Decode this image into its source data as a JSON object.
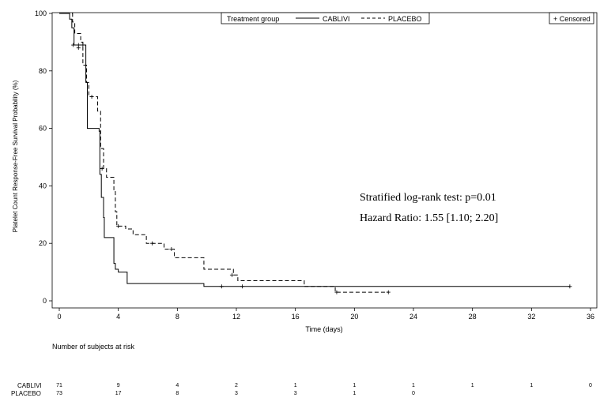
{
  "chart_data": {
    "type": "line",
    "subtype": "kaplan-meier",
    "title": "",
    "xlabel": "Time (days)",
    "ylabel": "Platelet Count Response-Free Survival Probability (%)",
    "xlim": [
      0,
      36
    ],
    "ylim": [
      0,
      100
    ],
    "xticks": [
      0,
      4,
      8,
      12,
      16,
      20,
      24,
      28,
      32,
      36
    ],
    "yticks": [
      0,
      20,
      40,
      60,
      80,
      100
    ],
    "grid": false,
    "legend": {
      "title": "Treatment group",
      "placement": "top-center",
      "entries": [
        "CABLIVI",
        "PLACEBO"
      ],
      "censored_label": "+ Censored"
    },
    "annotations": [
      "Stratified log-rank test: p=0.01",
      "Hazard Ratio: 1.55 [1.10; 2.20]"
    ],
    "series": [
      {
        "name": "CABLIVI",
        "style": "solid",
        "steps": [
          [
            0,
            100
          ],
          [
            0.7,
            98
          ],
          [
            0.85,
            95
          ],
          [
            1.0,
            89
          ],
          [
            1.8,
            76
          ],
          [
            1.9,
            60
          ],
          [
            2.7,
            59
          ],
          [
            2.75,
            44
          ],
          [
            2.85,
            36
          ],
          [
            3.0,
            29
          ],
          [
            3.05,
            22
          ],
          [
            3.7,
            13
          ],
          [
            3.8,
            11
          ],
          [
            4.0,
            10
          ],
          [
            4.6,
            6
          ],
          [
            9.8,
            5
          ],
          [
            16.5,
            5
          ],
          [
            34.6,
            5
          ]
        ],
        "censored": [
          [
            0.95,
            89
          ],
          [
            1.3,
            89
          ],
          [
            1.6,
            89
          ],
          [
            11.0,
            5
          ],
          [
            12.4,
            5
          ],
          [
            34.6,
            5
          ]
        ]
      },
      {
        "name": "PLACEBO",
        "style": "dashed",
        "steps": [
          [
            0,
            100
          ],
          [
            0.9,
            97
          ],
          [
            1.05,
            93
          ],
          [
            1.45,
            90
          ],
          [
            1.6,
            82
          ],
          [
            1.85,
            76
          ],
          [
            2.0,
            71
          ],
          [
            2.6,
            66
          ],
          [
            2.8,
            53
          ],
          [
            3.0,
            46
          ],
          [
            3.2,
            43
          ],
          [
            3.7,
            38
          ],
          [
            3.8,
            31
          ],
          [
            3.9,
            26
          ],
          [
            4.5,
            25
          ],
          [
            5.0,
            23
          ],
          [
            5.9,
            20
          ],
          [
            7.1,
            18
          ],
          [
            7.8,
            15
          ],
          [
            9.8,
            11
          ],
          [
            11.8,
            9
          ],
          [
            12.1,
            7
          ],
          [
            16.6,
            5
          ],
          [
            18.7,
            3
          ],
          [
            22.3,
            3
          ]
        ],
        "censored": [
          [
            1.3,
            88
          ],
          [
            2.2,
            71
          ],
          [
            2.9,
            46
          ],
          [
            4.0,
            26
          ],
          [
            6.3,
            20
          ],
          [
            7.6,
            18
          ],
          [
            11.7,
            9
          ],
          [
            18.8,
            3
          ],
          [
            22.3,
            3
          ]
        ]
      }
    ]
  },
  "risk_table": {
    "title": "Number of subjects at risk",
    "times": [
      0,
      4,
      8,
      12,
      16,
      20,
      24,
      28,
      32,
      36
    ],
    "rows": [
      {
        "label": "CABLIVI",
        "values": [
          "71",
          "9",
          "4",
          "2",
          "1",
          "1",
          "1",
          "1",
          "1",
          "0"
        ]
      },
      {
        "label": "PLACEBO",
        "values": [
          "73",
          "17",
          "8",
          "3",
          "3",
          "1",
          "0",
          "",
          "",
          ""
        ]
      }
    ]
  }
}
